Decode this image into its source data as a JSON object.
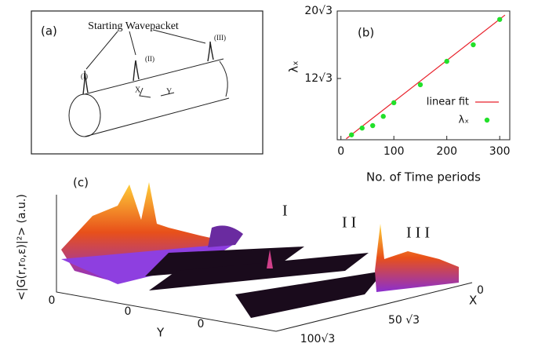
{
  "panel_a": {
    "tag": "(a)",
    "caption": "Starting Wavepacket",
    "markers": [
      "(I)",
      "(II)",
      "(III)"
    ],
    "x_axis": "X",
    "y_axis": "Y"
  },
  "chart_data": {
    "type": "scatter",
    "title": "(b)",
    "x_label": "No. of Time periods",
    "y_label": "λₓ",
    "xlim": [
      -7,
      319
    ],
    "xticks": [
      0,
      100,
      200,
      300
    ],
    "ylim": [
      8.2,
      34.64
    ],
    "yticks": [
      {
        "value": 20.78,
        "label": "12√3"
      },
      {
        "value": 34.64,
        "label": "20√3"
      }
    ],
    "legend": "right",
    "series": [
      {
        "name": "linear fit",
        "type": "line",
        "color": "#e8202a",
        "x": [
          10,
          310
        ],
        "values": [
          8.4,
          33.8
        ]
      },
      {
        "name": "λₓ",
        "type": "scatter",
        "color": "#22e02a",
        "x": [
          20,
          40,
          60,
          80,
          100,
          150,
          200,
          250,
          300
        ],
        "values": [
          9.2,
          10.6,
          11.1,
          13.0,
          15.8,
          19.5,
          24.3,
          27.7,
          32.9
        ]
      }
    ]
  },
  "panel_c": {
    "tag": "(c)",
    "y_label": "<|G(r,r₀,ε)|²> (a.u.)",
    "regions": [
      "I",
      "I I",
      "I I I"
    ],
    "z_tick": "0",
    "y_ticks": [
      "0",
      "0"
    ],
    "y_axis": "Y",
    "x_ticks": [
      "0",
      "50 √3",
      "100√3"
    ],
    "x_axis": "X"
  }
}
